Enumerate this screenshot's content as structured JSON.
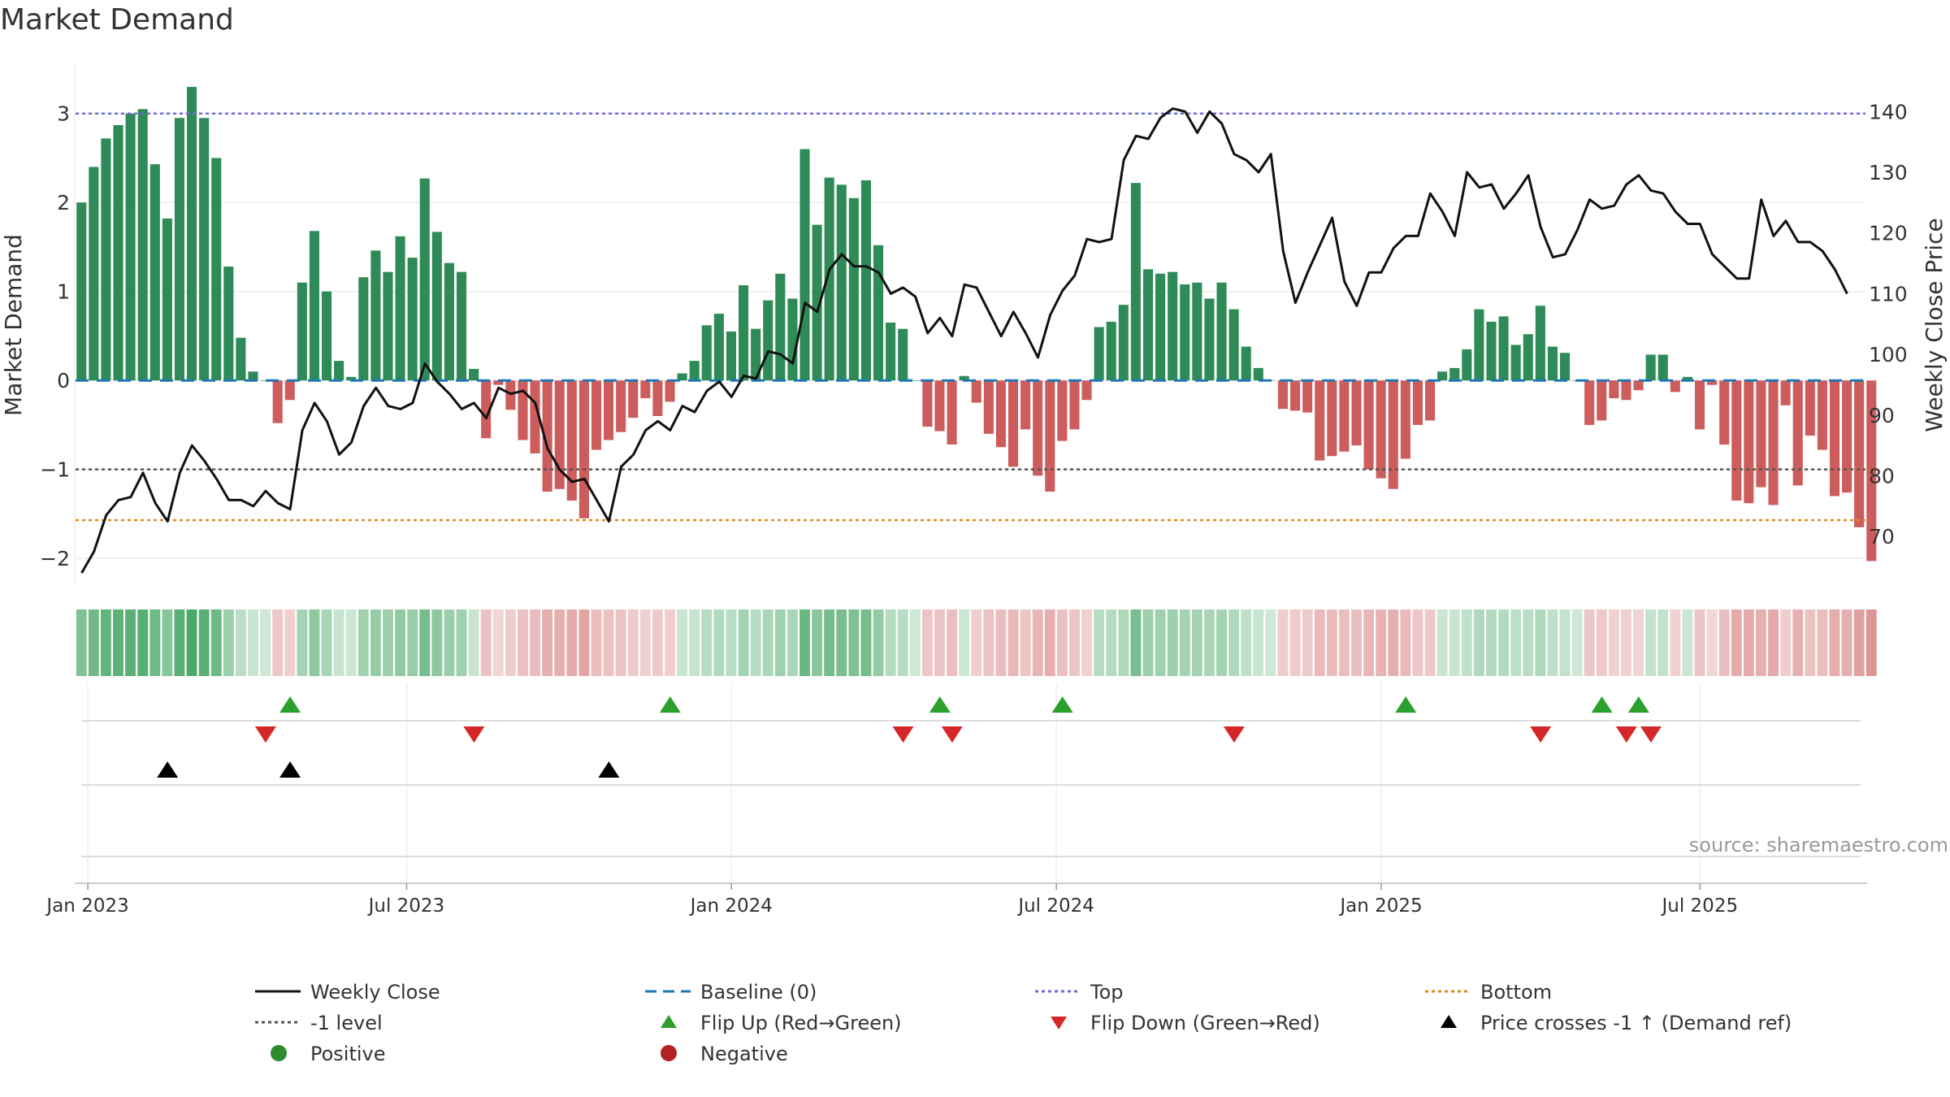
{
  "title": "Market Demand",
  "source": "source: sharemaestro.com",
  "colors": {
    "positive": "#2e8b57",
    "negative": "#cd5c5c",
    "close": "#111111",
    "baseline": "#1f77b4",
    "top": "#6a6adb",
    "minus1": "#555555",
    "bottom": "#e08a1e",
    "flip_up": "#2ca02c",
    "flip_down": "#d62728",
    "cross": "#000000",
    "strip_pos": "#3aa05a",
    "strip_neg": "#cd5c5c"
  },
  "chart_data": {
    "type": "bar",
    "title": "Market Demand",
    "ylabel": "Market Demand",
    "y2label": "Weekly Close Price",
    "ylim": [
      -2.3,
      3.5
    ],
    "y2lim": [
      62,
      147
    ],
    "yticks": [
      3,
      2,
      1,
      0,
      -1,
      -2
    ],
    "ytick_labels": [
      "3",
      "2",
      "1",
      "0",
      "−1",
      "−2"
    ],
    "y2ticks": [
      140,
      130,
      120,
      110,
      100,
      90,
      80,
      70
    ],
    "reference_lines": {
      "top": 3.0,
      "minus1": -1.0,
      "bottom": -1.57,
      "baseline": 0
    },
    "x_start": "2022-12-25",
    "week_count": 146,
    "x_ticks": [
      {
        "label": "Jan 2023",
        "week": 1
      },
      {
        "label": "Jul 2023",
        "week": 27
      },
      {
        "label": "Jan 2024",
        "week": 53.5
      },
      {
        "label": "Jul 2024",
        "week": 80
      },
      {
        "label": "Jan 2025",
        "week": 106.5
      },
      {
        "label": "Jul 2025",
        "week": 132.5
      }
    ],
    "demand": [
      2.0,
      2.4,
      2.72,
      2.87,
      3.0,
      3.05,
      2.43,
      1.82,
      2.95,
      3.3,
      2.95,
      2.5,
      1.28,
      0.48,
      0.1,
      0.0,
      -0.48,
      -0.22,
      1.1,
      1.68,
      1.0,
      0.22,
      0.04,
      1.16,
      1.46,
      1.22,
      1.62,
      1.38,
      2.27,
      1.67,
      1.32,
      1.22,
      0.13,
      -0.65,
      -0.05,
      -0.33,
      -0.67,
      -0.82,
      -1.25,
      -1.22,
      -1.35,
      -1.55,
      -0.78,
      -0.67,
      -0.58,
      -0.42,
      -0.2,
      -0.4,
      -0.24,
      0.08,
      0.22,
      0.62,
      0.75,
      0.55,
      1.07,
      0.58,
      0.9,
      1.2,
      0.92,
      2.6,
      1.75,
      2.28,
      2.2,
      2.05,
      2.25,
      1.52,
      0.65,
      0.58,
      0.0,
      -0.52,
      -0.57,
      -0.72,
      0.05,
      -0.25,
      -0.6,
      -0.75,
      -0.97,
      -0.55,
      -1.07,
      -1.25,
      -0.68,
      -0.55,
      -0.22,
      0.6,
      0.66,
      0.85,
      2.22,
      1.25,
      1.2,
      1.22,
      1.08,
      1.1,
      0.92,
      1.1,
      0.8,
      0.38,
      0.14,
      0.0,
      -0.32,
      -0.34,
      -0.36,
      -0.9,
      -0.85,
      -0.8,
      -0.73,
      -1.0,
      -1.1,
      -1.22,
      -0.88,
      -0.5,
      -0.45,
      0.1,
      0.14,
      0.35,
      0.8,
      0.66,
      0.72,
      0.4,
      0.52,
      0.84,
      0.38,
      0.31,
      0.0,
      -0.5,
      -0.45,
      -0.2,
      -0.22,
      -0.11,
      0.29,
      0.29,
      -0.13,
      0.04,
      -0.55,
      -0.05,
      -0.72,
      -1.35,
      -1.38,
      -1.2,
      -1.4,
      -0.28,
      -1.18,
      -0.62,
      -0.78,
      -1.3,
      -1.26,
      -1.65,
      -2.03
    ],
    "close": [
      64,
      67.5,
      73.5,
      76,
      76.5,
      80.5,
      75.5,
      72.5,
      80.5,
      85,
      82.5,
      79.5,
      76,
      76,
      75,
      77.5,
      75.5,
      74.5,
      87.5,
      92,
      89,
      83.5,
      85.5,
      91.5,
      94.5,
      91.5,
      91,
      92,
      98.5,
      95.5,
      93.5,
      91,
      92,
      89.5,
      94.5,
      93.5,
      94,
      92,
      84.5,
      81,
      79,
      79.5,
      76,
      72.5,
      81.5,
      83.5,
      87.5,
      89,
      87.5,
      91.5,
      90.5,
      94,
      95.5,
      93,
      96.5,
      96,
      100.5,
      100,
      98.5,
      108.5,
      107,
      114,
      116.5,
      114.5,
      114.5,
      113.5,
      110,
      111,
      109.5,
      103.5,
      106,
      103,
      111.5,
      111,
      107,
      103,
      107,
      103.5,
      99.5,
      106.5,
      110.5,
      113,
      119,
      118.5,
      119,
      132,
      136,
      135.5,
      139,
      140.5,
      140,
      136.5,
      140,
      138,
      133,
      132,
      130,
      133,
      117,
      108.5,
      113.5,
      118,
      122.5,
      112,
      108,
      113.5,
      113.5,
      117.5,
      119.5,
      119.5,
      126.5,
      123.5,
      119.5,
      130,
      127.5,
      128,
      124,
      126.5,
      129.5,
      121,
      116,
      116.5,
      120.5,
      125.5,
      124,
      124.5,
      128,
      129.5,
      127,
      126.5,
      123.5,
      121.5,
      121.5,
      116.5,
      114.5,
      112.5,
      112.5,
      125.5,
      119.5,
      122,
      118.5,
      118.5,
      117,
      114,
      110
    ],
    "flip_up_weeks": [
      17,
      48,
      70,
      80,
      108,
      124,
      127
    ],
    "flip_down_weeks": [
      15,
      32,
      67,
      71,
      94,
      119,
      126,
      128
    ],
    "price_cross_weeks": [
      7,
      17,
      43
    ]
  },
  "legend": [
    {
      "label": "Weekly Close",
      "marker": "solid-line",
      "color": "#111111"
    },
    {
      "label": "Baseline (0)",
      "marker": "dash-line",
      "color": "#1f77b4"
    },
    {
      "label": "Top",
      "marker": "dot-line",
      "color": "#6a6adb"
    },
    {
      "label": "Bottom",
      "marker": "dot-line",
      "color": "#e08a1e"
    },
    {
      "label": "-1 level",
      "marker": "dot-line",
      "color": "#555555"
    },
    {
      "label": "Flip Up (Red→Green)",
      "marker": "triangle-up",
      "color": "#2ca02c"
    },
    {
      "label": "Flip Down (Green→Red)",
      "marker": "triangle-down",
      "color": "#d62728"
    },
    {
      "label": "Price crosses -1 ↑ (Demand ref)",
      "marker": "triangle-up",
      "color": "#000000"
    },
    {
      "label": "Positive",
      "marker": "circle",
      "color": "#2e8b2e"
    },
    {
      "label": "Negative",
      "marker": "circle",
      "color": "#b22222"
    }
  ]
}
